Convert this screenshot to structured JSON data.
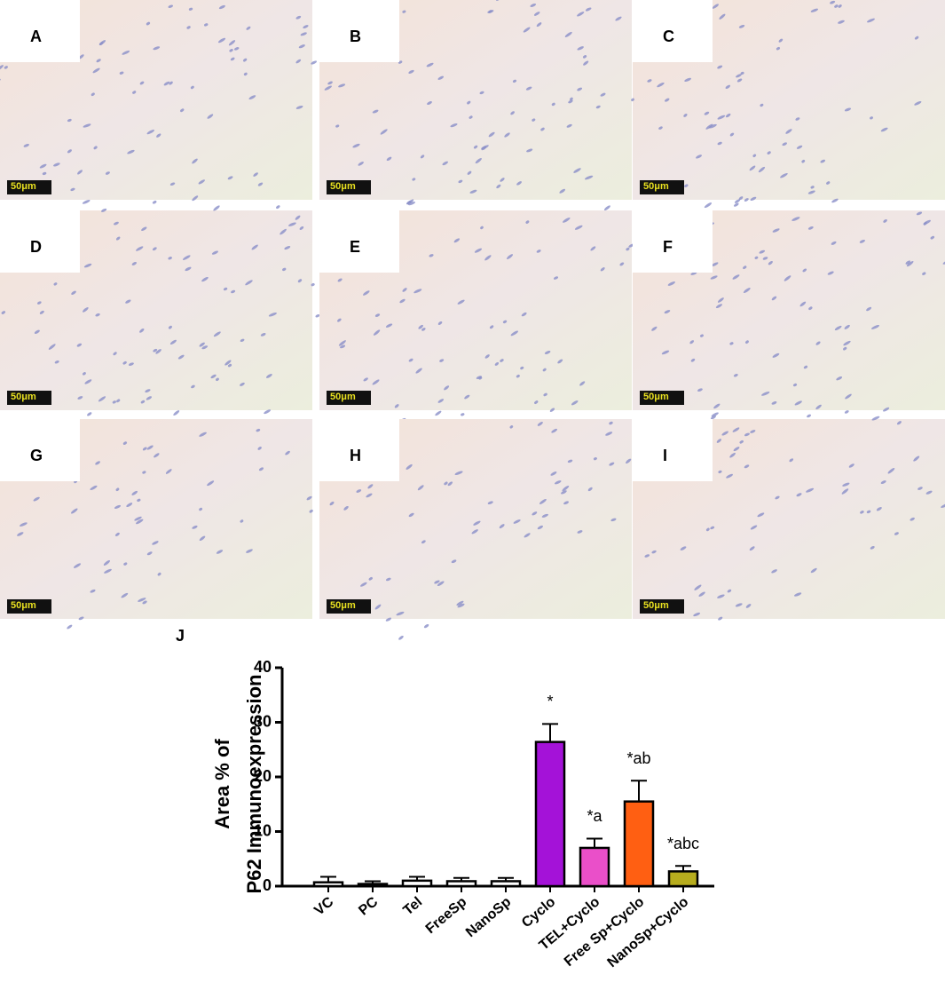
{
  "panels": [
    {
      "label": "A",
      "scale_bar": "50μm"
    },
    {
      "label": "B",
      "scale_bar": "50μm"
    },
    {
      "label": "C",
      "scale_bar": "50μm"
    },
    {
      "label": "D",
      "scale_bar": "50μm"
    },
    {
      "label": "E",
      "scale_bar": "50μm"
    },
    {
      "label": "F",
      "scale_bar": "50μm"
    },
    {
      "label": "G",
      "scale_bar": "50μm"
    },
    {
      "label": "H",
      "scale_bar": "50μm"
    },
    {
      "label": "I",
      "scale_bar": "50μm"
    }
  ],
  "chart_label": "J",
  "chart_data": {
    "type": "bar",
    "y_label": [
      "Area % of",
      "P62 Immunoexpression"
    ],
    "categories": [
      "VC",
      "PC",
      "Tel",
      "FreeSp",
      "NanoSp",
      "Cyclo",
      "TEL+Cyclo",
      "Free Sp+Cyclo",
      "NanoSp+Cyclo"
    ],
    "values": [
      0.7,
      0.4,
      1.0,
      0.9,
      0.9,
      26.4,
      7.0,
      15.5,
      2.7
    ],
    "errors": [
      1.0,
      0.5,
      0.7,
      0.6,
      0.6,
      3.3,
      1.7,
      3.8,
      1.0
    ],
    "colors": [
      "#ffffff",
      "#ffffff",
      "#ffffff",
      "#ffffff",
      "#ffffff",
      "#a412d8",
      "#ea4fc9",
      "#ff5f12",
      "#b7ad1e"
    ],
    "annotations": [
      {
        "text": "*",
        "category": "Cyclo"
      },
      {
        "text": "*a",
        "category": "TEL+Cyclo"
      },
      {
        "text": "*ab",
        "category": "Free Sp+Cyclo"
      },
      {
        "text": "*abc",
        "category": "NanoSp+Cyclo"
      }
    ],
    "ylim": [
      0,
      40
    ],
    "yticks": [
      0,
      10,
      20,
      30,
      40
    ]
  }
}
